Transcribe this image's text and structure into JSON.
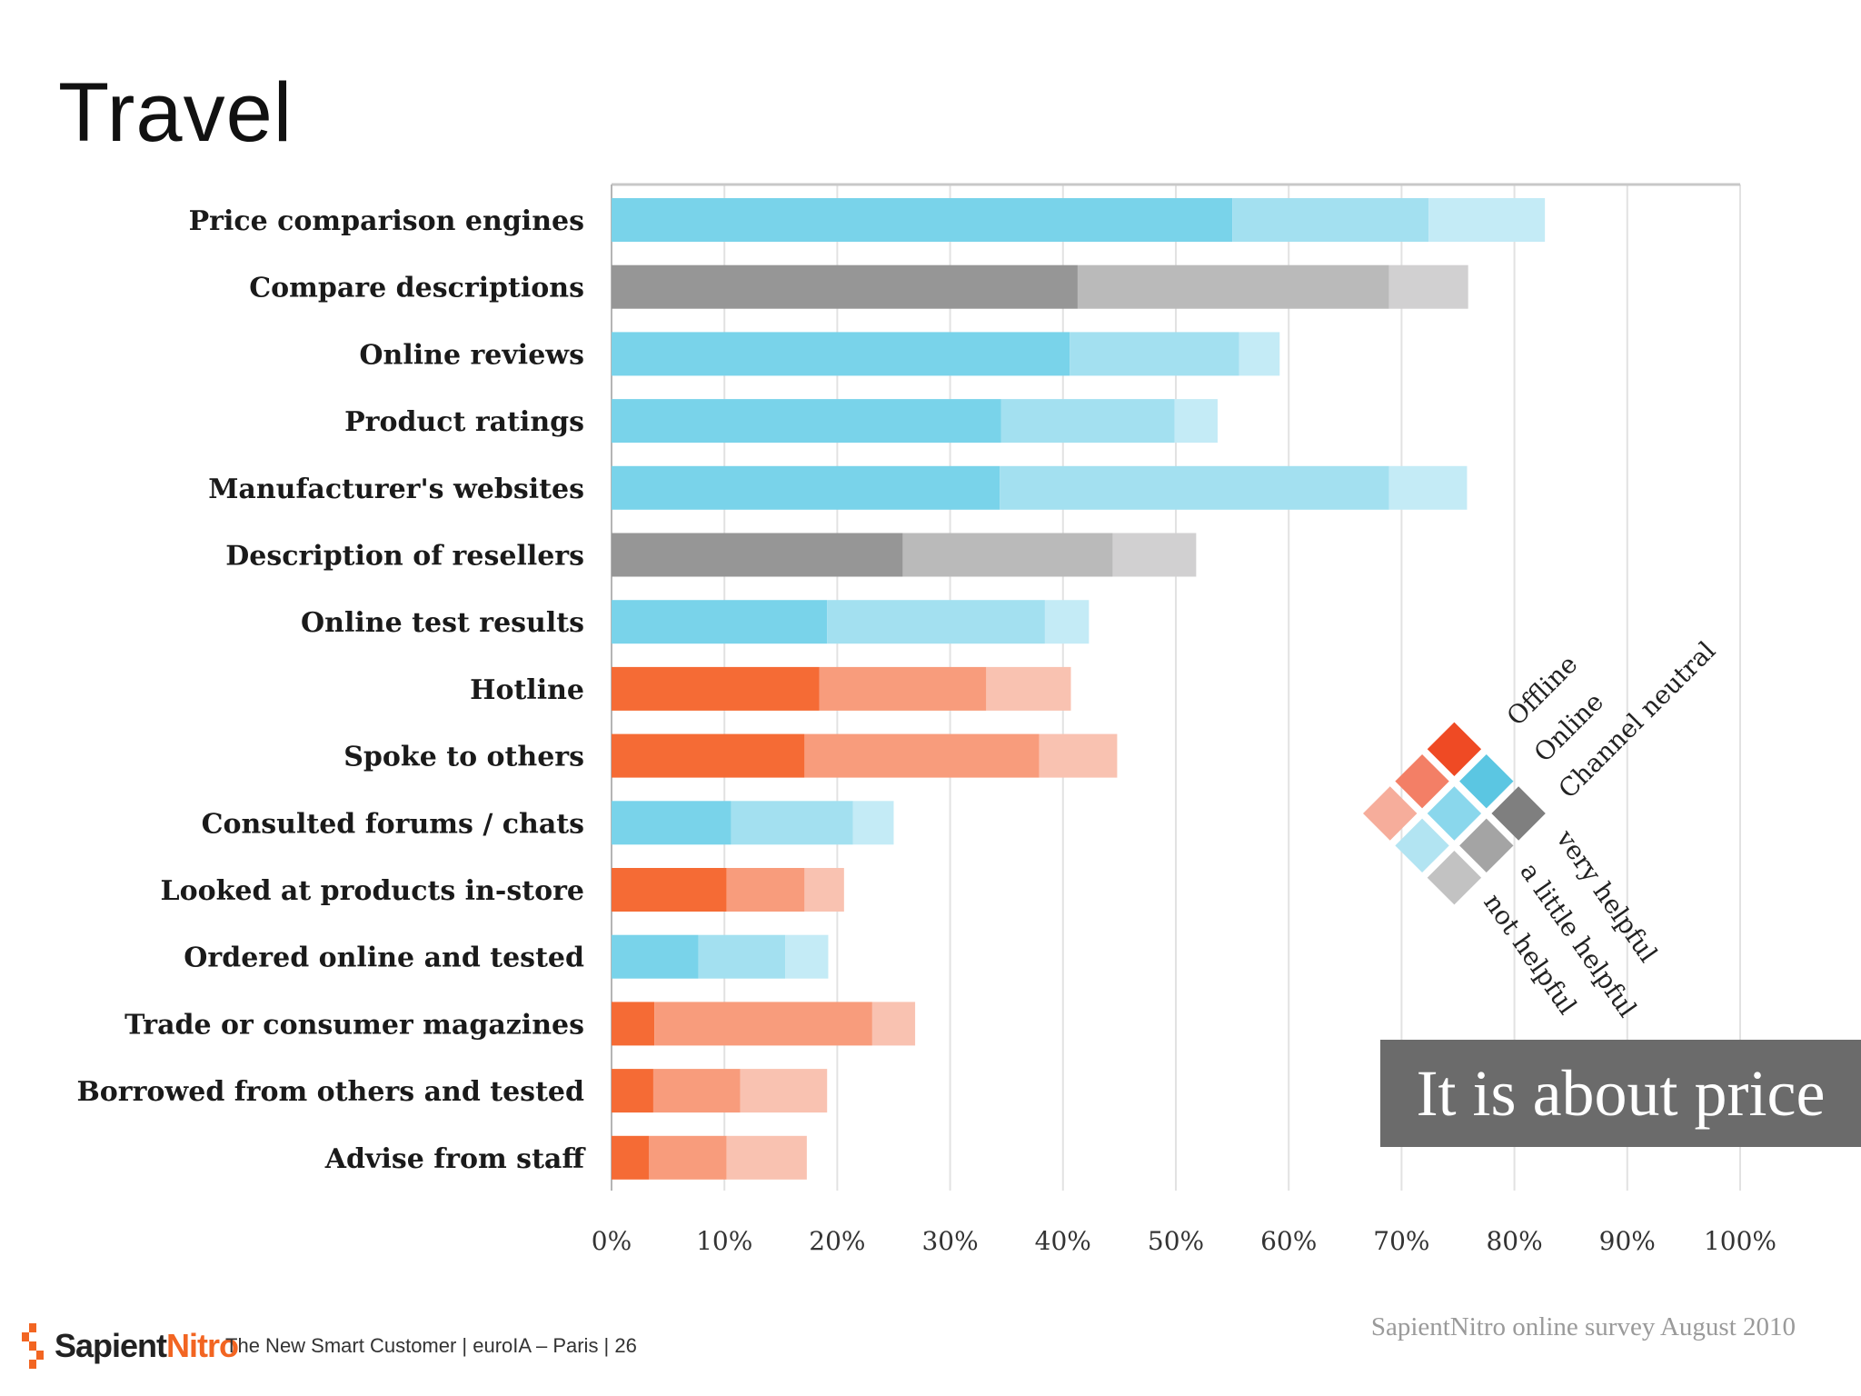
{
  "slide": {
    "title": "Travel",
    "callout": "It is about price",
    "source": "SapientNitro online survey August 2010",
    "footer": {
      "brand_part1": "Sapient",
      "brand_part2": "Nitro",
      "text": "The New Smart Customer  |  euroIA – Paris  |  26"
    }
  },
  "chart_data": {
    "type": "bar",
    "orientation": "horizontal",
    "stacked": true,
    "title": "",
    "xlim": [
      0,
      100
    ],
    "x_ticks": [
      "0%",
      "10%",
      "20%",
      "30%",
      "40%",
      "50%",
      "60%",
      "70%",
      "80%",
      "90%",
      "100%"
    ],
    "grid": true,
    "categories": [
      "Price comparison engines",
      "Compare descriptions",
      "Online reviews",
      "Product ratings",
      "Manufacturer's websites",
      "Description of resellers",
      "Online test results",
      "Hotline",
      "Spoke to others",
      "Consulted forums / chats",
      "Looked at products in-store",
      "Ordered online and tested",
      "Trade or consumer magazines",
      "Borrowed from others and tested",
      "Advise from staff"
    ],
    "channel": [
      "online",
      "neutral",
      "online",
      "online",
      "online",
      "neutral",
      "online",
      "offline",
      "offline",
      "online",
      "offline",
      "online",
      "offline",
      "offline",
      "offline"
    ],
    "series": [
      {
        "name": "very helpful",
        "values": [
          55.0,
          41.3,
          40.6,
          34.5,
          34.4,
          25.8,
          19.1,
          18.4,
          17.1,
          10.6,
          10.2,
          7.7,
          3.8,
          3.7,
          3.3
        ]
      },
      {
        "name": "a little helpful",
        "values": [
          17.4,
          27.6,
          15.0,
          15.4,
          34.5,
          18.6,
          19.3,
          14.8,
          20.8,
          10.8,
          6.9,
          7.7,
          19.3,
          7.7,
          6.9
        ]
      },
      {
        "name": "not helpful",
        "values": [
          10.3,
          7.0,
          3.6,
          3.8,
          6.9,
          7.4,
          3.9,
          7.5,
          6.9,
          3.6,
          3.5,
          3.8,
          3.8,
          7.7,
          7.1
        ]
      }
    ],
    "colors": {
      "online": [
        "#79d3ea",
        "#a3e0f0",
        "#c4ebf6"
      ],
      "neutral": [
        "#969696",
        "#bababa",
        "#d1d0d1"
      ],
      "offline": [
        "#f56b35",
        "#f89c7c",
        "#f9c2b1"
      ]
    },
    "legend": {
      "position": "right",
      "channels": [
        "Offline",
        "Online",
        "Channel neutral"
      ],
      "levels": [
        "very helpful",
        "a little helpful",
        "not helpful"
      ],
      "swatch_colors": {
        "offline": [
          "#ef4a24",
          "#f37f66",
          "#f6ad9b"
        ],
        "online": [
          "#5bc6e2",
          "#8ad7ec",
          "#b2e4f2"
        ],
        "neutral": [
          "#7f7f7f",
          "#a4a4a4",
          "#c2c2c2"
        ]
      }
    }
  }
}
